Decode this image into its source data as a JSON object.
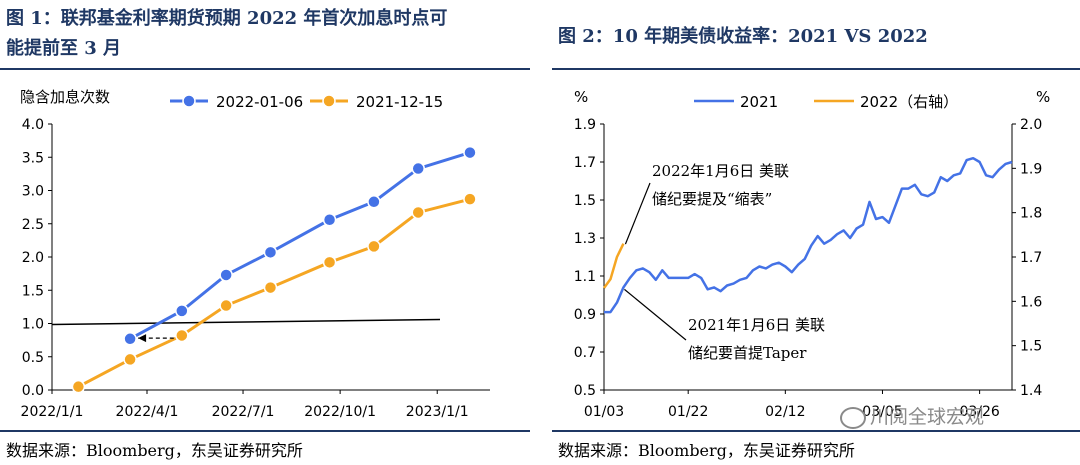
{
  "chart1": {
    "title_line1": "图 1：联邦基金利率期货预期 2022 年首次加息时点可",
    "title_line2": "能提前至 3 月",
    "source": "数据来源：Bloomberg，东吴证券研究所",
    "chart_data": {
      "type": "line",
      "ylabel": "隐含加息次数",
      "ylim": [
        0.0,
        4.0
      ],
      "yticks": [
        "0.0",
        "0.5",
        "1.0",
        "1.5",
        "2.0",
        "2.5",
        "3.0",
        "3.5",
        "4.0"
      ],
      "xticks": [
        "2022/1/1",
        "2022/4/1",
        "2022/7/1",
        "2022/10/1",
        "2023/1/1"
      ],
      "x": [
        "2022/1/26",
        "2022/3/16",
        "2022/5/4",
        "2022/6/15",
        "2022/7/27",
        "2022/9/21",
        "2022/11/2",
        "2022/12/14",
        "2023/2/1"
      ],
      "series": [
        {
          "name": "2022-01-06",
          "color": "#4472e6",
          "values": [
            null,
            0.77,
            1.19,
            1.73,
            2.07,
            2.56,
            2.83,
            3.33,
            3.57
          ]
        },
        {
          "name": "2021-12-15",
          "color": "#f5a623",
          "values": [
            0.05,
            0.46,
            0.82,
            1.27,
            1.54,
            1.92,
            2.16,
            2.67,
            2.87
          ]
        }
      ],
      "reference_line": 1.0
    }
  },
  "chart2": {
    "title": "图 2：10 年期美债收益率：2021 VS 2022",
    "source": "数据来源：Bloomberg，东吴证券研究所",
    "watermark": "川阅全球宏观",
    "chart_data": {
      "type": "line",
      "ylabel_left": "%",
      "ylabel_right": "%",
      "ylim_left": [
        0.5,
        1.9
      ],
      "yticks_left": [
        "0.5",
        "0.7",
        "0.9",
        "1.1",
        "1.3",
        "1.5",
        "1.7",
        "1.9"
      ],
      "ylim_right": [
        1.4,
        2.0
      ],
      "yticks_right": [
        "1.4",
        "1.5",
        "1.6",
        "1.7",
        "1.8",
        "1.9",
        "2.0"
      ],
      "xlim": [
        0,
        63
      ],
      "xticks": [
        "01/03",
        "01/22",
        "02/12",
        "03/05",
        "03/26"
      ],
      "xtick_index": [
        0,
        13,
        28,
        43,
        58
      ],
      "series": [
        {
          "name": "2021",
          "axis": "left",
          "color": "#4472e6",
          "values": [
            0.91,
            0.91,
            0.96,
            1.04,
            1.09,
            1.13,
            1.14,
            1.12,
            1.08,
            1.13,
            1.09,
            1.09,
            1.09,
            1.09,
            1.11,
            1.09,
            1.03,
            1.04,
            1.02,
            1.05,
            1.06,
            1.08,
            1.09,
            1.13,
            1.15,
            1.14,
            1.16,
            1.17,
            1.15,
            1.12,
            1.16,
            1.19,
            1.26,
            1.31,
            1.27,
            1.29,
            1.32,
            1.34,
            1.3,
            1.35,
            1.37,
            1.49,
            1.4,
            1.41,
            1.38,
            1.47,
            1.56,
            1.56,
            1.58,
            1.53,
            1.52,
            1.54,
            1.62,
            1.6,
            1.63,
            1.64,
            1.71,
            1.72,
            1.7,
            1.63,
            1.62,
            1.66,
            1.69,
            1.7
          ]
        },
        {
          "name": "2022（右轴）",
          "axis": "right",
          "color": "#f5a623",
          "values": [
            1.63,
            1.65,
            1.7,
            1.73
          ]
        }
      ],
      "annotations": [
        {
          "line1": "2022年1月6日 美联",
          "line2": "储纪要提及“缩表”"
        },
        {
          "line1": "2021年1月6日 美联",
          "line2": "储纪要首提Taper"
        }
      ]
    }
  }
}
